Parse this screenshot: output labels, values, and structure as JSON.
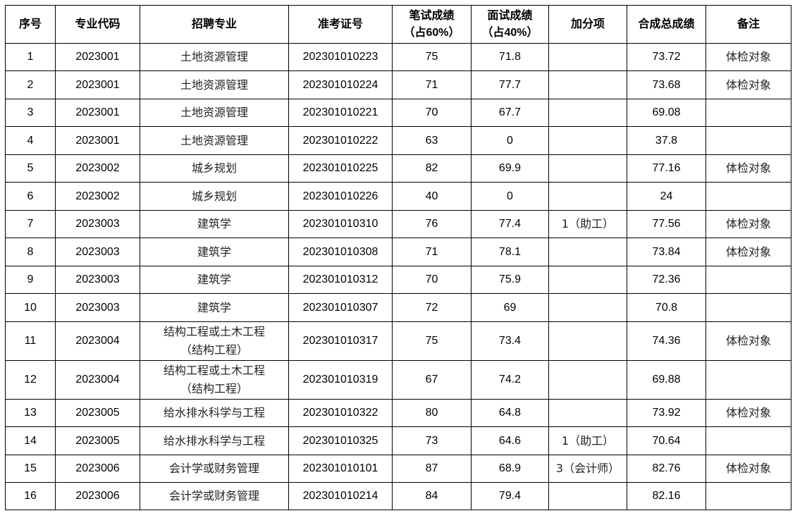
{
  "headers": [
    "序号",
    "专业代码",
    "招聘专业",
    "准考证号",
    "笔试成绩（占60%）",
    "面试成绩（占40%）",
    "加分项",
    "合成总成绩",
    "备注"
  ],
  "header_lines": {
    "written": [
      "笔试成绩",
      "（占60%）"
    ],
    "interview": [
      "面试成绩",
      "（占40%）"
    ]
  },
  "rows": [
    {
      "no": "1",
      "code": "2023001",
      "major": [
        "土地资源管理"
      ],
      "exam_id": "202301010223",
      "written": "75",
      "interview": "71.8",
      "bonus": "",
      "total": "73.72",
      "note": "体检对象"
    },
    {
      "no": "2",
      "code": "2023001",
      "major": [
        "土地资源管理"
      ],
      "exam_id": "202301010224",
      "written": "71",
      "interview": "77.7",
      "bonus": "",
      "total": "73.68",
      "note": "体检对象"
    },
    {
      "no": "3",
      "code": "2023001",
      "major": [
        "土地资源管理"
      ],
      "exam_id": "202301010221",
      "written": "70",
      "interview": "67.7",
      "bonus": "",
      "total": "69.08",
      "note": ""
    },
    {
      "no": "4",
      "code": "2023001",
      "major": [
        "土地资源管理"
      ],
      "exam_id": "202301010222",
      "written": "63",
      "interview": "0",
      "bonus": "",
      "total": "37.8",
      "note": ""
    },
    {
      "no": "5",
      "code": "2023002",
      "major": [
        "城乡规划"
      ],
      "exam_id": "202301010225",
      "written": "82",
      "interview": "69.9",
      "bonus": "",
      "total": "77.16",
      "note": "体检对象"
    },
    {
      "no": "6",
      "code": "2023002",
      "major": [
        "城乡规划"
      ],
      "exam_id": "202301010226",
      "written": "40",
      "interview": "0",
      "bonus": "",
      "total": "24",
      "note": ""
    },
    {
      "no": "7",
      "code": "2023003",
      "major": [
        "建筑学"
      ],
      "exam_id": "202301010310",
      "written": "76",
      "interview": "77.4",
      "bonus": "1（助工）",
      "total": "77.56",
      "note": "体检对象"
    },
    {
      "no": "8",
      "code": "2023003",
      "major": [
        "建筑学"
      ],
      "exam_id": "202301010308",
      "written": "71",
      "interview": "78.1",
      "bonus": "",
      "total": "73.84",
      "note": "体检对象"
    },
    {
      "no": "9",
      "code": "2023003",
      "major": [
        "建筑学"
      ],
      "exam_id": "202301010312",
      "written": "70",
      "interview": "75.9",
      "bonus": "",
      "total": "72.36",
      "note": ""
    },
    {
      "no": "10",
      "code": "2023003",
      "major": [
        "建筑学"
      ],
      "exam_id": "202301010307",
      "written": "72",
      "interview": "69",
      "bonus": "",
      "total": "70.8",
      "note": ""
    },
    {
      "no": "11",
      "code": "2023004",
      "major": [
        "结构工程或土木工程",
        "（结构工程）"
      ],
      "exam_id": "202301010317",
      "written": "75",
      "interview": "73.4",
      "bonus": "",
      "total": "74.36",
      "note": "体检对象"
    },
    {
      "no": "12",
      "code": "2023004",
      "major": [
        "结构工程或土木工程",
        "（结构工程）"
      ],
      "exam_id": "202301010319",
      "written": "67",
      "interview": "74.2",
      "bonus": "",
      "total": "69.88",
      "note": ""
    },
    {
      "no": "13",
      "code": "2023005",
      "major": [
        "给水排水科学与工程"
      ],
      "exam_id": "202301010322",
      "written": "80",
      "interview": "64.8",
      "bonus": "",
      "total": "73.92",
      "note": "体检对象"
    },
    {
      "no": "14",
      "code": "2023005",
      "major": [
        "给水排水科学与工程"
      ],
      "exam_id": "202301010325",
      "written": "73",
      "interview": "64.6",
      "bonus": "1（助工）",
      "total": "70.64",
      "note": ""
    },
    {
      "no": "15",
      "code": "2023006",
      "major": [
        "会计学或财务管理"
      ],
      "exam_id": "202301010101",
      "written": "87",
      "interview": "68.9",
      "bonus": "3（会计师）",
      "total": "82.76",
      "note": "体检对象"
    },
    {
      "no": "16",
      "code": "2023006",
      "major": [
        "会计学或财务管理"
      ],
      "exam_id": "202301010214",
      "written": "84",
      "interview": "79.4",
      "bonus": "",
      "total": "82.16",
      "note": ""
    }
  ]
}
